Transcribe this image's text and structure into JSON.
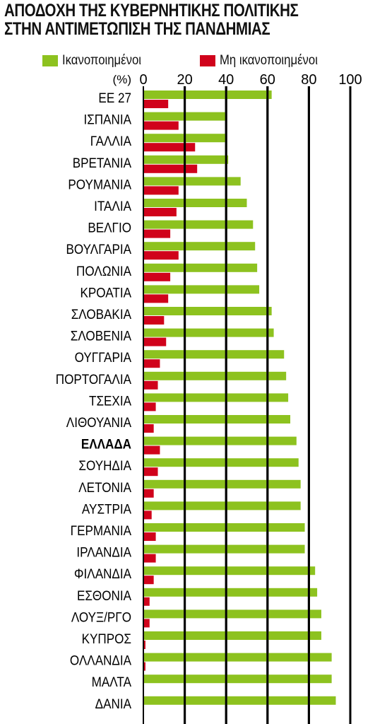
{
  "title_line1": "ΑΠΟΔΟΧΗ ΤΗΣ ΚΥΒΕΡΝΗΤΙΚΗΣ ΠΟΛΙΤΙΚΗΣ",
  "title_line2": "ΣΤΗΝ ΑΝΤΙΜΕΤΩΠΙΣΗ ΤΗΣ ΠΑΝΔΗΜΙΑΣ",
  "colors": {
    "satisfied": "#8dc21f",
    "unsatisfied": "#d0021b",
    "grid": "#000000"
  },
  "chart_data": {
    "type": "bar",
    "orientation": "horizontal",
    "unit_label": "(%)",
    "xlim": [
      0,
      100
    ],
    "ticks": [
      "0",
      "20",
      "40",
      "60",
      "80",
      "100"
    ],
    "grid": true,
    "legend_position": "top",
    "highlight": "ΕΛΛΑΔΑ",
    "categories": [
      "ΕΕ 27",
      "ΙΣΠΑΝΙΑ",
      "ΓΑΛΛΙΑ",
      "ΒΡΕΤΑΝΙΑ",
      "ΡΟΥΜΑΝΙΑ",
      "ΙΤΑΛΙΑ",
      "ΒΕΛΓΙΟ",
      "ΒΟΥΛΓΑΡΙΑ",
      "ΠΟΛΩΝΙΑ",
      "ΚΡΟΑΤΙΑ",
      "ΣΛΟΒΑΚΙΑ",
      "ΣΛΟΒΕΝΙΑ",
      "ΟΥΓΓΑΡΙΑ",
      "ΠΟΡΤΟΓΑΛΙΑ",
      "ΤΣΕΧΙΑ",
      "ΛΙΘΟΥΑΝΙΑ",
      "ΕΛΛΑΔΑ",
      "ΣΟΥΗΔΙΑ",
      "ΛΕΤΟΝΙΑ",
      "ΑΥΣΤΡΙΑ",
      "ΓΕΡΜΑΝΙΑ",
      "ΙΡΛΑΝΔΙΑ",
      "ΦΙΛΑΝΔΙΑ",
      "ΕΣΘΟΝΙΑ",
      "ΛΟΥΞ/ΡΓΟ",
      "ΚΥΠΡΟΣ",
      "ΟΛΛΑΝΔΙΑ",
      "ΜΑΛΤΑ",
      "ΔΑΝΙΑ"
    ],
    "series": [
      {
        "name": "Ικανοποιημένοι",
        "values": [
          62,
          40,
          40,
          41,
          47,
          50,
          53,
          54,
          55,
          56,
          62,
          63,
          68,
          69,
          70,
          71,
          74,
          75,
          76,
          76,
          78,
          78,
          83,
          84,
          86,
          86,
          91,
          91,
          93
        ]
      },
      {
        "name": "Μη ικανοποιημένοι",
        "values": [
          12,
          17,
          25,
          26,
          17,
          16,
          13,
          17,
          13,
          12,
          10,
          11,
          8,
          7,
          6,
          5,
          8,
          7,
          5,
          4,
          6,
          6,
          5,
          3,
          3,
          1,
          1,
          0,
          0
        ]
      }
    ]
  }
}
